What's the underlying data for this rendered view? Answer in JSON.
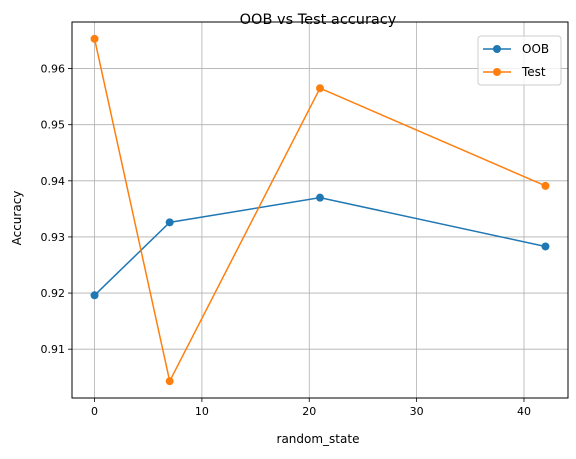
{
  "chart_data": {
    "type": "line",
    "title": "OOB vs Test accuracy",
    "xlabel": "random_state",
    "ylabel": "Accuracy",
    "xlim": [
      -2.1,
      44.1
    ],
    "ylim": [
      0.9013,
      0.9683
    ],
    "xticks": [
      0,
      10,
      20,
      30,
      40
    ],
    "yticks": [
      0.91,
      0.92,
      0.93,
      0.94,
      0.95,
      0.96
    ],
    "xtick_labels": [
      "0",
      "10",
      "20",
      "30",
      "40"
    ],
    "ytick_labels": [
      "0.91",
      "0.92",
      "0.93",
      "0.94",
      "0.95",
      "0.96"
    ],
    "grid": true,
    "legend_position": "top-right",
    "x": [
      0,
      7,
      21,
      42
    ],
    "series": [
      {
        "name": "OOB",
        "color": "#1f77b4",
        "values": [
          0.9196,
          0.9326,
          0.937,
          0.9283
        ]
      },
      {
        "name": "Test",
        "color": "#ff7f0e",
        "values": [
          0.9653,
          0.9043,
          0.9565,
          0.9391
        ]
      }
    ]
  }
}
